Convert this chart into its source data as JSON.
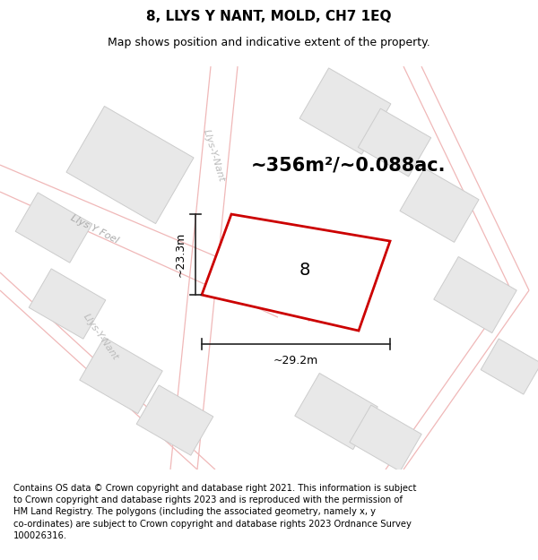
{
  "title": "8, LLYS Y NANT, MOLD, CH7 1EQ",
  "subtitle": "Map shows position and indicative extent of the property.",
  "footer": "Contains OS data © Crown copyright and database right 2021. This information is subject\nto Crown copyright and database rights 2023 and is reproduced with the permission of\nHM Land Registry. The polygons (including the associated geometry, namely x, y\nco-ordinates) are subject to Crown copyright and database rights 2023 Ordnance Survey\n100026316.",
  "area_text": "~356m²/~0.088ac.",
  "label_number": "8",
  "dim_width": "~29.2m",
  "dim_height": "~23.3m",
  "street_label_llys_y_foel": "Llys Y Foel",
  "street_label_llys_y_nant_top": "Llys-Y-Nant",
  "street_label_llys_y_nant_bot": "Llys-Y-Nant",
  "road_line_color": "#f0b8b8",
  "building_color": "#e8e8e8",
  "building_edge": "#cccccc",
  "plot_edge_color": "#cc0000",
  "dim_line_color": "#222222",
  "title_fontsize": 11,
  "subtitle_fontsize": 9,
  "footer_fontsize": 7.2,
  "area_fontsize": 15,
  "label_fontsize": 14,
  "street_fontsize": 8,
  "dim_fontsize": 9
}
